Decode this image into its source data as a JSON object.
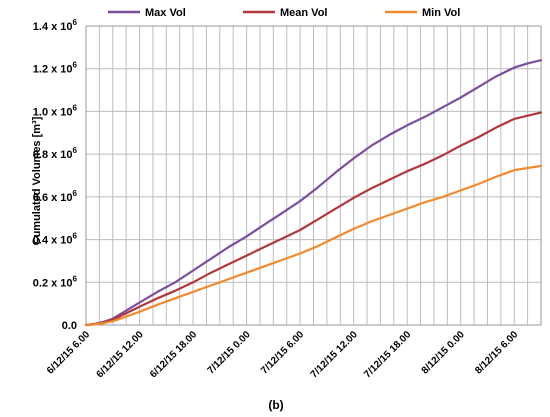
{
  "chart_data": {
    "type": "line",
    "ylabel": "Cumulated Volumes [m³]",
    "caption": "(b)",
    "grid": true,
    "legend_position": "top",
    "ylim": [
      0,
      1400000
    ],
    "y_ticks": [
      {
        "value": 0,
        "label": "0.0",
        "exp": ""
      },
      {
        "value": 200000,
        "label": "0.2 x 10",
        "exp": "6"
      },
      {
        "value": 400000,
        "label": "0.4 x 10",
        "exp": "6"
      },
      {
        "value": 600000,
        "label": "0.6 x 10",
        "exp": "6"
      },
      {
        "value": 800000,
        "label": "0.8 x 10",
        "exp": "6"
      },
      {
        "value": 1000000,
        "label": "1.0 x 10",
        "exp": "6"
      },
      {
        "value": 1200000,
        "label": "1.2 x 10",
        "exp": "6"
      },
      {
        "value": 1400000,
        "label": "1.4 x 10",
        "exp": "6"
      }
    ],
    "xlim": [
      0,
      48
    ],
    "x_ticks": [
      {
        "value": 0,
        "label": "6/12/15 6.00"
      },
      {
        "value": 6,
        "label": "6/12/15 12.00"
      },
      {
        "value": 12,
        "label": "6/12/15 18.00"
      },
      {
        "value": 18,
        "label": "7/12/15 0.00"
      },
      {
        "value": 24,
        "label": "7/12/15 6.00"
      },
      {
        "value": 30,
        "label": "7/12/15 12.00"
      },
      {
        "value": 36,
        "label": "7/12/15 18.00"
      },
      {
        "value": 42,
        "label": "8/12/15 0.00"
      },
      {
        "value": 48,
        "label": "8/12/15 6.00"
      }
    ],
    "x_minor_step": 1.5,
    "x_end": 51,
    "x": [
      0,
      1,
      2,
      3,
      4,
      5,
      6,
      8,
      10,
      12,
      14,
      16,
      18,
      20,
      22,
      24,
      26,
      28,
      30,
      32,
      34,
      36,
      38,
      40,
      42,
      44,
      46,
      48,
      49.5,
      51
    ],
    "series": [
      {
        "name": "Max Vol",
        "color": "#7b4f9d",
        "values": [
          0,
          5000,
          15000,
          30000,
          55000,
          80000,
          105000,
          155000,
          200000,
          255000,
          310000,
          365000,
          415000,
          470000,
          525000,
          580000,
          645000,
          715000,
          780000,
          840000,
          890000,
          935000,
          975000,
          1020000,
          1065000,
          1115000,
          1165000,
          1205000,
          1225000,
          1240000
        ]
      },
      {
        "name": "Mean Vol",
        "color": "#b0383d",
        "values": [
          0,
          4000,
          12000,
          25000,
          45000,
          65000,
          85000,
          125000,
          160000,
          200000,
          245000,
          285000,
          325000,
          365000,
          405000,
          445000,
          495000,
          545000,
          595000,
          640000,
          680000,
          720000,
          755000,
          795000,
          840000,
          880000,
          925000,
          965000,
          980000,
          995000
        ]
      },
      {
        "name": "Min Vol",
        "color": "#f28a2b",
        "values": [
          0,
          3000,
          9000,
          18000,
          32000,
          47000,
          62000,
          95000,
          125000,
          155000,
          185000,
          215000,
          245000,
          275000,
          305000,
          335000,
          370000,
          410000,
          450000,
          485000,
          515000,
          545000,
          575000,
          600000,
          630000,
          660000,
          695000,
          725000,
          735000,
          745000
        ]
      }
    ]
  }
}
